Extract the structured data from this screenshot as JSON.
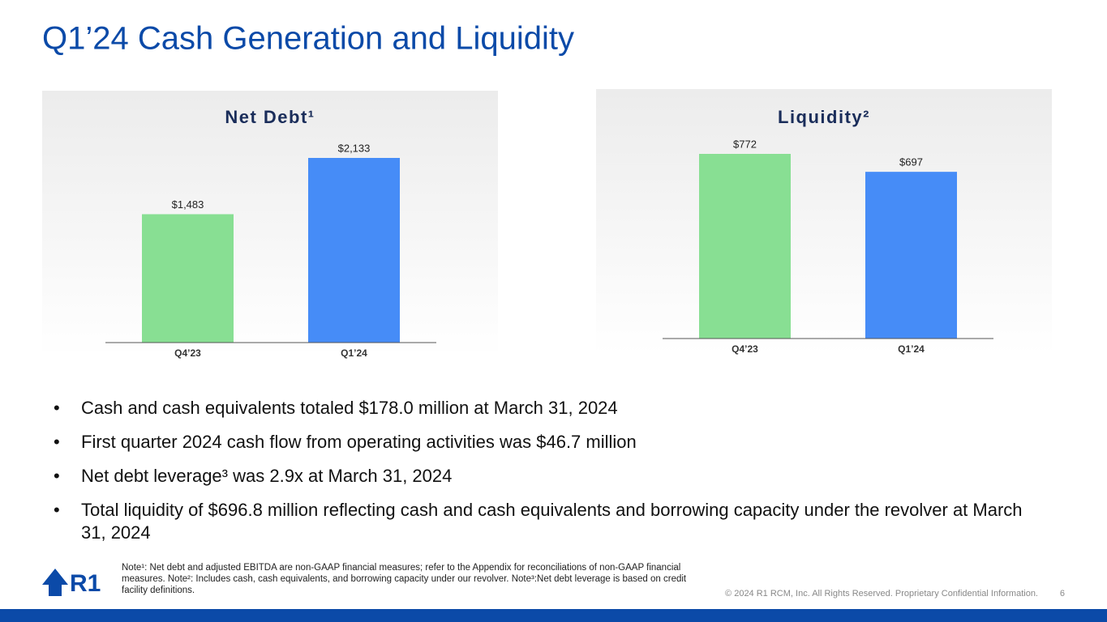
{
  "title": "Q1’24 Cash Generation and Liquidity",
  "chart_data": [
    {
      "type": "bar",
      "title": "Net Debt¹",
      "categories": [
        "Q4’23",
        "Q1’24"
      ],
      "values": [
        1483,
        2133
      ],
      "value_labels": [
        "$1,483",
        "$2,133"
      ],
      "colors": [
        "#88df93",
        "#468cf7"
      ]
    },
    {
      "type": "bar",
      "title": "Liquidity²",
      "categories": [
        "Q4’23",
        "Q1’24"
      ],
      "values": [
        772,
        697
      ],
      "value_labels": [
        "$772",
        "$697"
      ],
      "colors": [
        "#88df93",
        "#468cf7"
      ]
    }
  ],
  "bullets": [
    "Cash and cash equivalents totaled $178.0 million at March 31, 2024",
    "First quarter 2024 cash flow from operating activities was $46.7 million",
    "Net debt leverage³ was 2.9x at March 31, 2024",
    "Total liquidity of $696.8 million reflecting cash and cash equivalents and borrowing capacity under the revolver at March 31, 2024"
  ],
  "logo": "R1",
  "note": "Note¹: Net debt and adjusted EBITDA are non-GAAP financial measures; refer to the Appendix for reconciliations of non-GAAP financial measures. Note²: Includes cash, cash equivalents, and borrowing capacity under our revolver. Note³:Net debt leverage is based on credit facility definitions.",
  "footer": "© 2024 R1 RCM, Inc. All Rights Reserved. Proprietary Confidential Information.",
  "page_number": "6"
}
